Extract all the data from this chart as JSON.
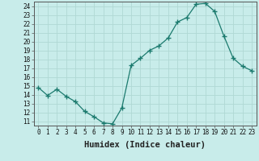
{
  "x": [
    0,
    1,
    2,
    3,
    4,
    5,
    6,
    7,
    8,
    9,
    10,
    11,
    12,
    13,
    14,
    15,
    16,
    17,
    18,
    19,
    20,
    21,
    22,
    23
  ],
  "y": [
    14.8,
    13.9,
    14.6,
    13.8,
    13.2,
    12.1,
    11.5,
    10.8,
    10.7,
    12.5,
    17.3,
    18.1,
    19.0,
    19.5,
    20.4,
    22.2,
    22.7,
    24.2,
    24.3,
    23.4,
    20.6,
    18.1,
    17.2,
    16.7
  ],
  "line_color": "#1b7a6e",
  "marker": "+",
  "marker_size": 4,
  "marker_linewidth": 1.0,
  "line_width": 0.9,
  "bg_color": "#c8ecea",
  "grid_color_major": "#b0d8d4",
  "grid_color_minor": "#c0e4e0",
  "xlabel": "Humidex (Indice chaleur)",
  "xlim": [
    -0.5,
    23.5
  ],
  "ylim": [
    10.5,
    24.5
  ],
  "xticks": [
    0,
    1,
    2,
    3,
    4,
    5,
    6,
    7,
    8,
    9,
    10,
    11,
    12,
    13,
    14,
    15,
    16,
    17,
    18,
    19,
    20,
    21,
    22,
    23
  ],
  "yticks": [
    11,
    12,
    13,
    14,
    15,
    16,
    17,
    18,
    19,
    20,
    21,
    22,
    23,
    24
  ],
  "xtick_labels": [
    "0",
    "1",
    "2",
    "3",
    "4",
    "5",
    "6",
    "7",
    "8",
    "9",
    "10",
    "11",
    "12",
    "13",
    "14",
    "15",
    "16",
    "17",
    "18",
    "19",
    "20",
    "21",
    "22",
    "23"
  ],
  "ytick_labels": [
    "11",
    "12",
    "13",
    "14",
    "15",
    "16",
    "17",
    "18",
    "19",
    "20",
    "21",
    "22",
    "23",
    "24"
  ],
  "tick_fontsize": 5.5,
  "xlabel_fontsize": 7.5,
  "spine_color": "#555555"
}
